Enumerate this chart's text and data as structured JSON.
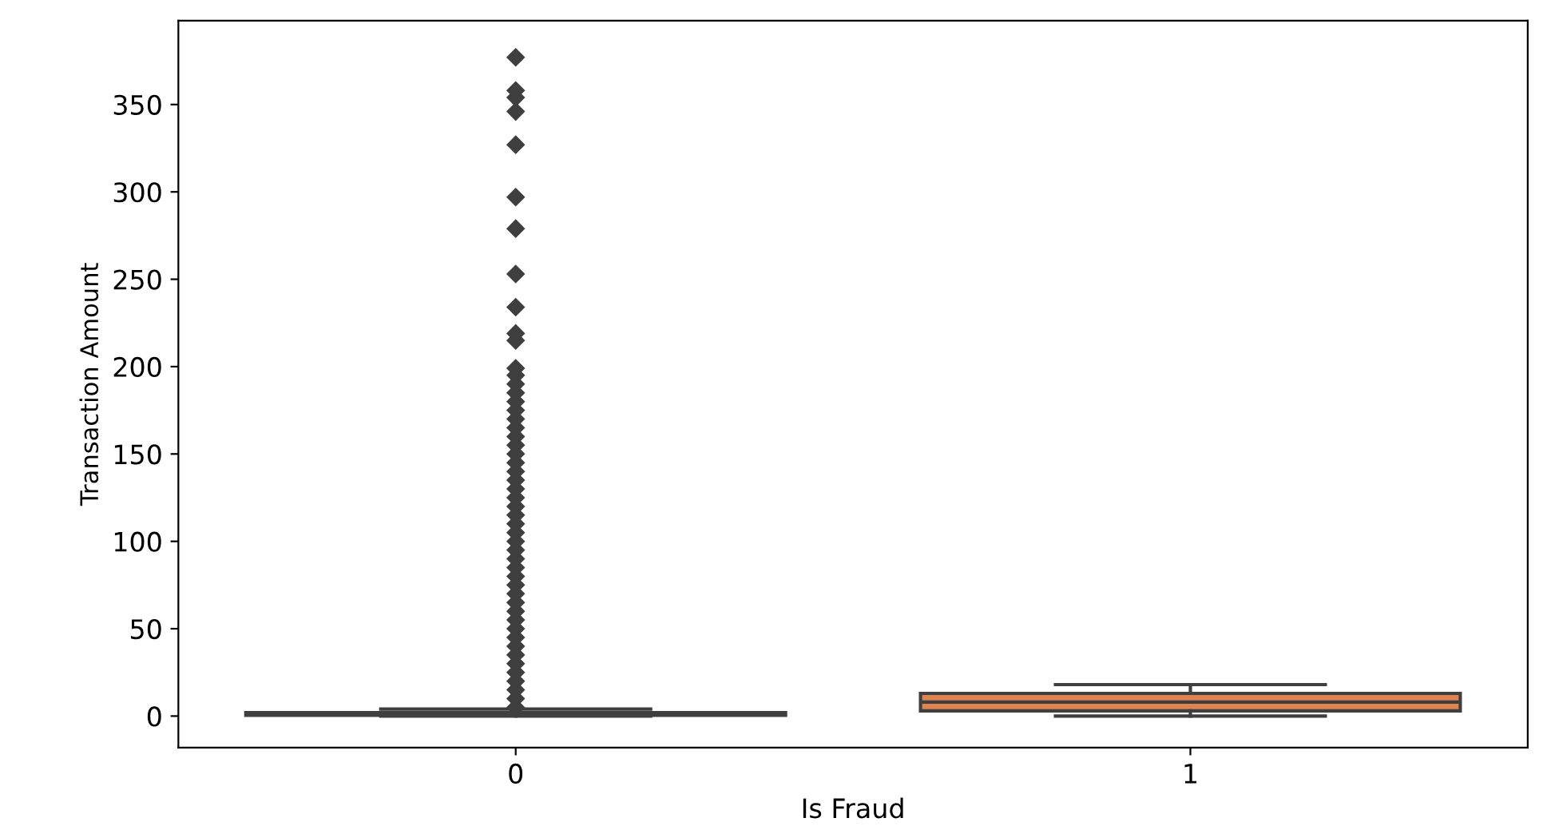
{
  "chart_data": {
    "type": "box",
    "xlabel": "Is Fraud",
    "ylabel": "Transaction Amount",
    "categories": [
      "0",
      "1"
    ],
    "colors": [
      "#4c72b0",
      "#dd8452"
    ],
    "boxes": [
      {
        "low": 0,
        "q1": 0.5,
        "median": 1,
        "q3": 2,
        "high": 4,
        "outliers": [
          5,
          10,
          15,
          20,
          25,
          30,
          35,
          40,
          45,
          50,
          55,
          60,
          65,
          70,
          75,
          80,
          85,
          90,
          95,
          100,
          105,
          110,
          115,
          120,
          125,
          130,
          135,
          140,
          145,
          150,
          155,
          160,
          165,
          170,
          175,
          180,
          185,
          190,
          195,
          199,
          215,
          219,
          234,
          253,
          279,
          297,
          327,
          346,
          354,
          358,
          377
        ]
      },
      {
        "low": 0,
        "q1": 3,
        "median": 8,
        "q3": 13,
        "high": 18
      }
    ],
    "ylim": [
      -18,
      398
    ],
    "yticks": [
      0,
      50,
      100,
      150,
      200,
      250,
      300,
      350
    ],
    "grid": false
  }
}
